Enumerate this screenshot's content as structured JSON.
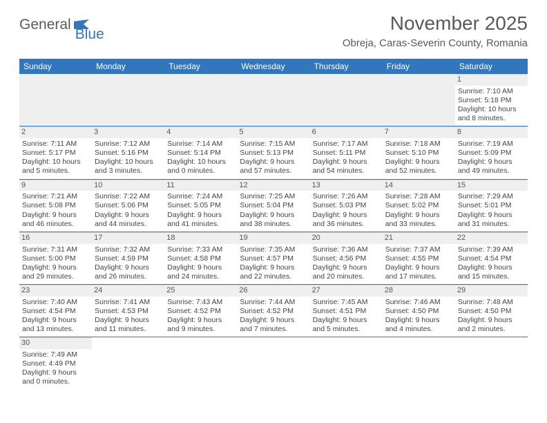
{
  "logo": {
    "text1": "General",
    "text2": "Blue"
  },
  "header": {
    "title": "November 2025",
    "location": "Obreja, Caras-Severin County, Romania"
  },
  "colors": {
    "header_bg": "#3277bd",
    "header_text": "#ffffff",
    "daynum_bg": "#efefef",
    "row_border": "#3277bd",
    "body_text": "#444444",
    "title_text": "#595959"
  },
  "day_names": [
    "Sunday",
    "Monday",
    "Tuesday",
    "Wednesday",
    "Thursday",
    "Friday",
    "Saturday"
  ],
  "weeks": [
    [
      null,
      null,
      null,
      null,
      null,
      null,
      {
        "n": "1",
        "sr": "Sunrise: 7:10 AM",
        "ss": "Sunset: 5:18 PM",
        "d1": "Daylight: 10 hours",
        "d2": "and 8 minutes."
      }
    ],
    [
      {
        "n": "2",
        "sr": "Sunrise: 7:11 AM",
        "ss": "Sunset: 5:17 PM",
        "d1": "Daylight: 10 hours",
        "d2": "and 5 minutes."
      },
      {
        "n": "3",
        "sr": "Sunrise: 7:12 AM",
        "ss": "Sunset: 5:16 PM",
        "d1": "Daylight: 10 hours",
        "d2": "and 3 minutes."
      },
      {
        "n": "4",
        "sr": "Sunrise: 7:14 AM",
        "ss": "Sunset: 5:14 PM",
        "d1": "Daylight: 10 hours",
        "d2": "and 0 minutes."
      },
      {
        "n": "5",
        "sr": "Sunrise: 7:15 AM",
        "ss": "Sunset: 5:13 PM",
        "d1": "Daylight: 9 hours",
        "d2": "and 57 minutes."
      },
      {
        "n": "6",
        "sr": "Sunrise: 7:17 AM",
        "ss": "Sunset: 5:11 PM",
        "d1": "Daylight: 9 hours",
        "d2": "and 54 minutes."
      },
      {
        "n": "7",
        "sr": "Sunrise: 7:18 AM",
        "ss": "Sunset: 5:10 PM",
        "d1": "Daylight: 9 hours",
        "d2": "and 52 minutes."
      },
      {
        "n": "8",
        "sr": "Sunrise: 7:19 AM",
        "ss": "Sunset: 5:09 PM",
        "d1": "Daylight: 9 hours",
        "d2": "and 49 minutes."
      }
    ],
    [
      {
        "n": "9",
        "sr": "Sunrise: 7:21 AM",
        "ss": "Sunset: 5:08 PM",
        "d1": "Daylight: 9 hours",
        "d2": "and 46 minutes."
      },
      {
        "n": "10",
        "sr": "Sunrise: 7:22 AM",
        "ss": "Sunset: 5:06 PM",
        "d1": "Daylight: 9 hours",
        "d2": "and 44 minutes."
      },
      {
        "n": "11",
        "sr": "Sunrise: 7:24 AM",
        "ss": "Sunset: 5:05 PM",
        "d1": "Daylight: 9 hours",
        "d2": "and 41 minutes."
      },
      {
        "n": "12",
        "sr": "Sunrise: 7:25 AM",
        "ss": "Sunset: 5:04 PM",
        "d1": "Daylight: 9 hours",
        "d2": "and 38 minutes."
      },
      {
        "n": "13",
        "sr": "Sunrise: 7:26 AM",
        "ss": "Sunset: 5:03 PM",
        "d1": "Daylight: 9 hours",
        "d2": "and 36 minutes."
      },
      {
        "n": "14",
        "sr": "Sunrise: 7:28 AM",
        "ss": "Sunset: 5:02 PM",
        "d1": "Daylight: 9 hours",
        "d2": "and 33 minutes."
      },
      {
        "n": "15",
        "sr": "Sunrise: 7:29 AM",
        "ss": "Sunset: 5:01 PM",
        "d1": "Daylight: 9 hours",
        "d2": "and 31 minutes."
      }
    ],
    [
      {
        "n": "16",
        "sr": "Sunrise: 7:31 AM",
        "ss": "Sunset: 5:00 PM",
        "d1": "Daylight: 9 hours",
        "d2": "and 29 minutes."
      },
      {
        "n": "17",
        "sr": "Sunrise: 7:32 AM",
        "ss": "Sunset: 4:59 PM",
        "d1": "Daylight: 9 hours",
        "d2": "and 26 minutes."
      },
      {
        "n": "18",
        "sr": "Sunrise: 7:33 AM",
        "ss": "Sunset: 4:58 PM",
        "d1": "Daylight: 9 hours",
        "d2": "and 24 minutes."
      },
      {
        "n": "19",
        "sr": "Sunrise: 7:35 AM",
        "ss": "Sunset: 4:57 PM",
        "d1": "Daylight: 9 hours",
        "d2": "and 22 minutes."
      },
      {
        "n": "20",
        "sr": "Sunrise: 7:36 AM",
        "ss": "Sunset: 4:56 PM",
        "d1": "Daylight: 9 hours",
        "d2": "and 20 minutes."
      },
      {
        "n": "21",
        "sr": "Sunrise: 7:37 AM",
        "ss": "Sunset: 4:55 PM",
        "d1": "Daylight: 9 hours",
        "d2": "and 17 minutes."
      },
      {
        "n": "22",
        "sr": "Sunrise: 7:39 AM",
        "ss": "Sunset: 4:54 PM",
        "d1": "Daylight: 9 hours",
        "d2": "and 15 minutes."
      }
    ],
    [
      {
        "n": "23",
        "sr": "Sunrise: 7:40 AM",
        "ss": "Sunset: 4:54 PM",
        "d1": "Daylight: 9 hours",
        "d2": "and 13 minutes."
      },
      {
        "n": "24",
        "sr": "Sunrise: 7:41 AM",
        "ss": "Sunset: 4:53 PM",
        "d1": "Daylight: 9 hours",
        "d2": "and 11 minutes."
      },
      {
        "n": "25",
        "sr": "Sunrise: 7:43 AM",
        "ss": "Sunset: 4:52 PM",
        "d1": "Daylight: 9 hours",
        "d2": "and 9 minutes."
      },
      {
        "n": "26",
        "sr": "Sunrise: 7:44 AM",
        "ss": "Sunset: 4:52 PM",
        "d1": "Daylight: 9 hours",
        "d2": "and 7 minutes."
      },
      {
        "n": "27",
        "sr": "Sunrise: 7:45 AM",
        "ss": "Sunset: 4:51 PM",
        "d1": "Daylight: 9 hours",
        "d2": "and 5 minutes."
      },
      {
        "n": "28",
        "sr": "Sunrise: 7:46 AM",
        "ss": "Sunset: 4:50 PM",
        "d1": "Daylight: 9 hours",
        "d2": "and 4 minutes."
      },
      {
        "n": "29",
        "sr": "Sunrise: 7:48 AM",
        "ss": "Sunset: 4:50 PM",
        "d1": "Daylight: 9 hours",
        "d2": "and 2 minutes."
      }
    ],
    [
      {
        "n": "30",
        "sr": "Sunrise: 7:49 AM",
        "ss": "Sunset: 4:49 PM",
        "d1": "Daylight: 9 hours",
        "d2": "and 0 minutes."
      },
      null,
      null,
      null,
      null,
      null,
      null
    ]
  ]
}
